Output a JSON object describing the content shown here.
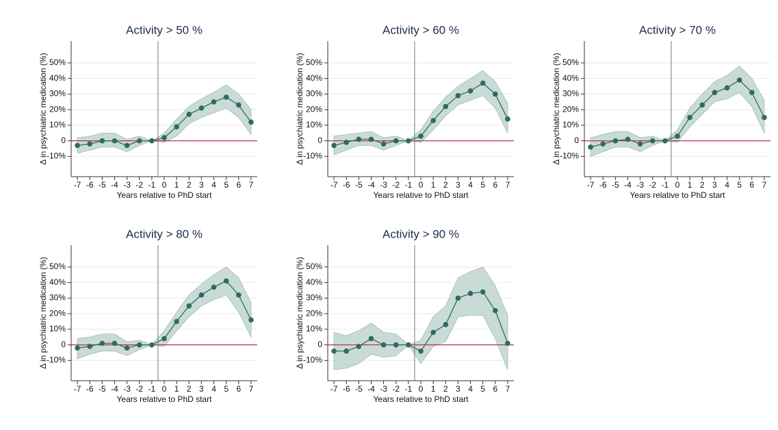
{
  "chart_data": [
    {
      "type": "line",
      "title": "Activity > 50 %",
      "xlabel": "Years relative to PhD start",
      "ylabel": "Δ in psychiatric medication (%)",
      "x": [
        -7,
        -6,
        -5,
        -4,
        -3,
        -2,
        -1,
        0,
        1,
        2,
        3,
        4,
        5,
        6,
        7
      ],
      "xlim": [
        -7.5,
        7.5
      ],
      "xticks": [
        -7,
        -6,
        -5,
        -4,
        -3,
        -2,
        -1,
        0,
        1,
        2,
        3,
        4,
        5,
        6,
        7
      ],
      "ylim": [
        -23,
        64
      ],
      "yticks": [
        {
          "value": -10,
          "label": "-10%"
        },
        0,
        {
          "value": 10,
          "label": "10%"
        },
        {
          "value": 20,
          "label": "20%"
        },
        {
          "value": 30,
          "label": "30%"
        },
        {
          "value": 40,
          "label": "40%"
        },
        {
          "value": 50,
          "label": "50%"
        }
      ],
      "values": [
        -3,
        -2,
        0,
        0,
        -3,
        0,
        0,
        2,
        9,
        17,
        21,
        25,
        28,
        23,
        12
      ],
      "ci_lower": [
        -8,
        -6,
        -4,
        -4,
        -7,
        -3,
        0,
        -1,
        3,
        11,
        15,
        18,
        21,
        15,
        4
      ],
      "ci_upper": [
        2,
        3,
        5,
        5,
        1,
        3,
        0,
        5,
        14,
        22,
        27,
        31,
        36,
        30,
        20
      ],
      "color": "#2f6b5f",
      "band_color": "#c9dbd6",
      "hline": 0,
      "vline": -0.5,
      "grid": true
    },
    {
      "type": "line",
      "title": "Activity > 60 %",
      "xlabel": "Years relative to PhD start",
      "ylabel": "Δ in psychiatric medication (%)",
      "x": [
        -7,
        -6,
        -5,
        -4,
        -3,
        -2,
        -1,
        0,
        1,
        2,
        3,
        4,
        5,
        6,
        7
      ],
      "xlim": [
        -7.5,
        7.5
      ],
      "xticks": [
        -7,
        -6,
        -5,
        -4,
        -3,
        -2,
        -1,
        0,
        1,
        2,
        3,
        4,
        5,
        6,
        7
      ],
      "ylim": [
        -23,
        64
      ],
      "yticks": [
        {
          "value": -10,
          "label": "-10%"
        },
        0,
        {
          "value": 10,
          "label": "10%"
        },
        {
          "value": 20,
          "label": "20%"
        },
        {
          "value": 30,
          "label": "30%"
        },
        {
          "value": 40,
          "label": "40%"
        },
        {
          "value": 50,
          "label": "50%"
        }
      ],
      "values": [
        -3,
        -1,
        1,
        1,
        -2,
        0,
        0,
        3,
        13,
        22,
        29,
        32,
        37,
        30,
        14
      ],
      "ci_lower": [
        -9,
        -6,
        -3,
        -3,
        -6,
        -3,
        0,
        -1,
        7,
        16,
        23,
        26,
        29,
        21,
        5
      ],
      "ci_upper": [
        3,
        4,
        5,
        6,
        2,
        3,
        0,
        7,
        19,
        28,
        35,
        40,
        45,
        38,
        24
      ],
      "color": "#2f6b5f",
      "band_color": "#c9dbd6",
      "hline": 0,
      "vline": -0.5,
      "grid": true
    },
    {
      "type": "line",
      "title": "Activity > 70 %",
      "xlabel": "Years relative to PhD start",
      "ylabel": "Δ in psychiatric medication (%)",
      "x": [
        -7,
        -6,
        -5,
        -4,
        -3,
        -2,
        -1,
        0,
        1,
        2,
        3,
        4,
        5,
        6,
        7
      ],
      "xlim": [
        -7.5,
        7.5
      ],
      "xticks": [
        -7,
        -6,
        -5,
        -4,
        -3,
        -2,
        -1,
        0,
        1,
        2,
        3,
        4,
        5,
        6,
        7
      ],
      "ylim": [
        -23,
        64
      ],
      "yticks": [
        {
          "value": -10,
          "label": "-10%"
        },
        0,
        {
          "value": 10,
          "label": "10%"
        },
        {
          "value": 20,
          "label": "20%"
        },
        {
          "value": 30,
          "label": "30%"
        },
        {
          "value": 40,
          "label": "40%"
        },
        {
          "value": 50,
          "label": "50%"
        }
      ],
      "values": [
        -4,
        -2,
        0,
        1,
        -2,
        0,
        0,
        3,
        15,
        23,
        31,
        34,
        39,
        31,
        15
      ],
      "ci_lower": [
        -10,
        -7,
        -4,
        -4,
        -7,
        -3,
        0,
        -1,
        9,
        17,
        25,
        27,
        31,
        22,
        5
      ],
      "ci_upper": [
        2,
        4,
        6,
        6,
        2,
        3,
        0,
        7,
        21,
        30,
        38,
        42,
        48,
        40,
        26
      ],
      "color": "#2f6b5f",
      "band_color": "#c9dbd6",
      "hline": 0,
      "vline": -0.5,
      "grid": true
    },
    {
      "type": "line",
      "title": "Activity > 80 %",
      "xlabel": "Years relative to PhD start",
      "ylabel": "Δ in psychiatric medication (%)",
      "x": [
        -7,
        -6,
        -5,
        -4,
        -3,
        -2,
        -1,
        0,
        1,
        2,
        3,
        4,
        5,
        6,
        7
      ],
      "xlim": [
        -7.5,
        7.5
      ],
      "xticks": [
        -7,
        -6,
        -5,
        -4,
        -3,
        -2,
        -1,
        0,
        1,
        2,
        3,
        4,
        5,
        6,
        7
      ],
      "ylim": [
        -23,
        64
      ],
      "yticks": [
        {
          "value": -10,
          "label": "-10%"
        },
        0,
        {
          "value": 10,
          "label": "10%"
        },
        {
          "value": 20,
          "label": "20%"
        },
        {
          "value": 30,
          "label": "30%"
        },
        {
          "value": 40,
          "label": "40%"
        },
        {
          "value": 50,
          "label": "50%"
        }
      ],
      "values": [
        -2,
        -1,
        1,
        1,
        -2,
        0,
        0,
        4,
        15,
        25,
        32,
        37,
        41,
        32,
        16
      ],
      "ci_lower": [
        -9,
        -6,
        -4,
        -4,
        -7,
        -3,
        0,
        -1,
        9,
        18,
        25,
        29,
        32,
        21,
        5
      ],
      "ci_upper": [
        4,
        5,
        7,
        7,
        2,
        3,
        0,
        9,
        21,
        32,
        39,
        45,
        50,
        43,
        27
      ],
      "color": "#2f6b5f",
      "band_color": "#c9dbd6",
      "hline": 0,
      "vline": -0.5,
      "grid": true
    },
    {
      "type": "line",
      "title": "Activity > 90 %",
      "xlabel": "Years relative to PhD start",
      "ylabel": "Δ in psychiatric medication (%)",
      "x": [
        -7,
        -6,
        -5,
        -4,
        -3,
        -2,
        -1,
        0,
        1,
        2,
        3,
        4,
        5,
        6,
        7
      ],
      "xlim": [
        -7.5,
        7.5
      ],
      "xticks": [
        -7,
        -6,
        -5,
        -4,
        -3,
        -2,
        -1,
        0,
        1,
        2,
        3,
        4,
        5,
        6,
        7
      ],
      "ylim": [
        -23,
        64
      ],
      "yticks": [
        {
          "value": -10,
          "label": "-10%"
        },
        0,
        {
          "value": 10,
          "label": "10%"
        },
        {
          "value": 20,
          "label": "20%"
        },
        {
          "value": 30,
          "label": "30%"
        },
        {
          "value": 40,
          "label": "40%"
        },
        {
          "value": 50,
          "label": "50%"
        }
      ],
      "values": [
        -4,
        -4,
        -1,
        4,
        0,
        0,
        0,
        -4,
        8,
        13,
        30,
        33,
        34,
        22,
        1
      ],
      "ci_lower": [
        -16,
        -15,
        -12,
        -6,
        -8,
        -7,
        0,
        -12,
        -1,
        2,
        18,
        19,
        19,
        4,
        -16
      ],
      "ci_upper": [
        8,
        6,
        9,
        14,
        8,
        7,
        0,
        3,
        18,
        25,
        43,
        47,
        50,
        38,
        19
      ],
      "color": "#2f6b5f",
      "band_color": "#c9dbd6",
      "hline": 0,
      "vline": -0.5,
      "grid": true
    }
  ]
}
